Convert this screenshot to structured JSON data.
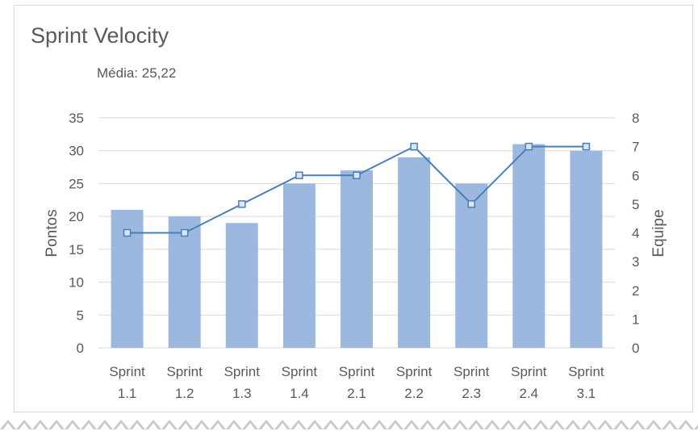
{
  "chart_data": {
    "type": "bar",
    "title": "Sprint Velocity",
    "subtitle": "Média: 25,22",
    "categories": [
      "Sprint 1.1",
      "Sprint 1.2",
      "Sprint 1.3",
      "Sprint 1.4",
      "Sprint 2.1",
      "Sprint 2.2",
      "Sprint 2.3",
      "Sprint 2.4",
      "Sprint 3.1"
    ],
    "category_lines": [
      [
        "Sprint",
        "1.1"
      ],
      [
        "Sprint",
        "1.2"
      ],
      [
        "Sprint",
        "1.3"
      ],
      [
        "Sprint",
        "1.4"
      ],
      [
        "Sprint",
        "2.1"
      ],
      [
        "Sprint",
        "2.2"
      ],
      [
        "Sprint",
        "2.3"
      ],
      [
        "Sprint",
        "2.4"
      ],
      [
        "Sprint",
        "3.1"
      ]
    ],
    "series": [
      {
        "name": "",
        "type": "bar",
        "axis": "left",
        "values": [
          21,
          20,
          19,
          25,
          27,
          29,
          25,
          31,
          30
        ]
      },
      {
        "name": "",
        "type": "line",
        "axis": "right",
        "values": [
          4,
          4,
          5,
          6,
          6,
          7,
          5,
          7,
          7
        ]
      }
    ],
    "ylabel": "Pontos",
    "y2label": "Equipe",
    "ylim": [
      0,
      35
    ],
    "y2lim": [
      0,
      8
    ],
    "yticks": [
      "0",
      "5",
      "10",
      "15",
      "20",
      "25",
      "30",
      "35"
    ],
    "y2ticks": [
      "0",
      "1",
      "2",
      "3",
      "4",
      "5",
      "6",
      "7",
      "8"
    ],
    "grid": true,
    "legend": "none",
    "colors": {
      "bar": "#9cb8de",
      "line": "#4a7ebb",
      "marker_fill": "#dce6f2",
      "grid": "#d9d9d9",
      "text": "#595959"
    }
  }
}
